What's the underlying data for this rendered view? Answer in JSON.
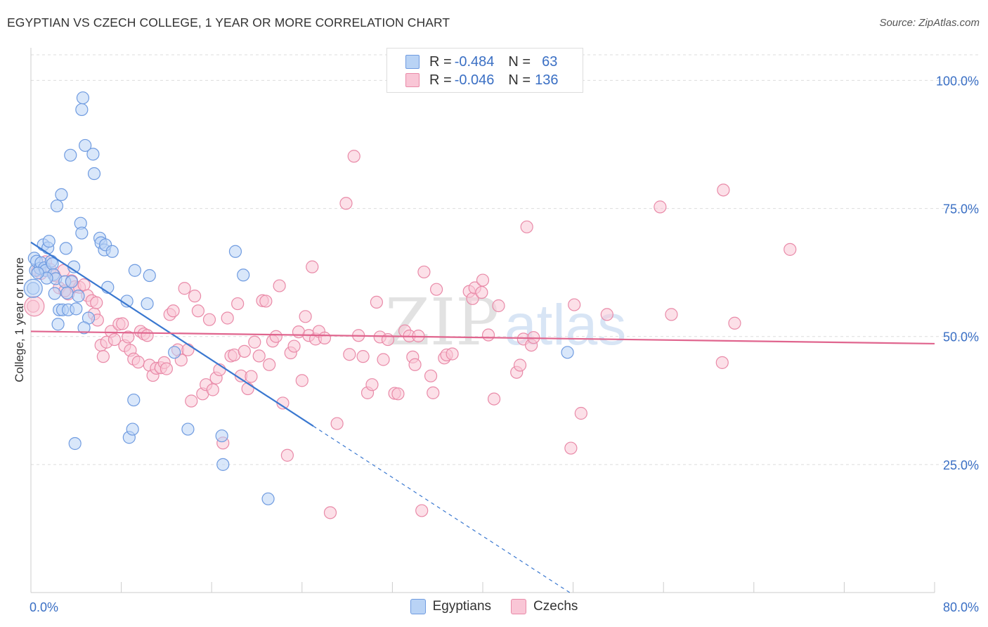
{
  "title": "EGYPTIAN VS CZECH COLLEGE, 1 YEAR OR MORE CORRELATION CHART",
  "source": "Source: ZipAtlas.com",
  "legend_top": [
    {
      "r_label": "R =",
      "r_value": "-0.484",
      "n_label": "N =",
      "n_value": "63",
      "fill": "#b9d3f5",
      "stroke": "#6f9be0"
    },
    {
      "r_label": "R =",
      "r_value": "-0.046",
      "n_label": "N =",
      "n_value": "136",
      "fill": "#f9c6d6",
      "stroke": "#e98aa8"
    }
  ],
  "legend_bottom": [
    {
      "label": "Egyptians",
      "fill": "#b9d3f5",
      "stroke": "#6f9be0"
    },
    {
      "label": "Czechs",
      "fill": "#f9c6d6",
      "stroke": "#e98aa8"
    }
  ],
  "watermark": {
    "zip": "ZIP",
    "atlas": "atlas"
  },
  "chart_data": {
    "type": "scatter",
    "title": "EGYPTIAN VS CZECH COLLEGE, 1 YEAR OR MORE CORRELATION CHART",
    "xlabel": "",
    "ylabel": "College, 1 year or more",
    "xlim": [
      0,
      80
    ],
    "ylim": [
      0,
      105
    ],
    "x_tick_labels": [
      "0.0%",
      "80.0%"
    ],
    "y_ticks": [
      25,
      50,
      75,
      100
    ],
    "y_tick_labels": [
      "25.0%",
      "50.0%",
      "75.0%",
      "100.0%"
    ],
    "grid": true,
    "colors": {
      "blue": "#3a6fc4",
      "pink": "#e0658e",
      "grid": "#dddddd"
    },
    "series": [
      {
        "name": "Egyptians",
        "fill": "#b9d3f5",
        "stroke": "#6f9be0",
        "line_color": "#3a78d0",
        "trend": {
          "x0": 0,
          "y0": 68.4,
          "x1": 25,
          "y1": 32.5,
          "dash_to_x": 47.7,
          "dash_to_y": 0
        },
        "points": [
          [
            0.2,
            59.4
          ],
          [
            0.3,
            65.3
          ],
          [
            0.4,
            62.9
          ],
          [
            0.5,
            64.7
          ],
          [
            0.8,
            63.3
          ],
          [
            0.9,
            64.4
          ],
          [
            1.1,
            67.9
          ],
          [
            1.2,
            63.4
          ],
          [
            1.3,
            62.9
          ],
          [
            1.5,
            67.3
          ],
          [
            1.6,
            68.6
          ],
          [
            1.8,
            64.7
          ],
          [
            1.9,
            64.2
          ],
          [
            2.0,
            62.1
          ],
          [
            2.1,
            58.4
          ],
          [
            2.2,
            61.3
          ],
          [
            2.3,
            75.5
          ],
          [
            2.5,
            55.2
          ],
          [
            2.7,
            77.7
          ],
          [
            2.8,
            55.2
          ],
          [
            3.0,
            60.7
          ],
          [
            3.1,
            67.2
          ],
          [
            3.2,
            58.5
          ],
          [
            3.3,
            55.2
          ],
          [
            3.5,
            85.4
          ],
          [
            3.6,
            60.7
          ],
          [
            3.8,
            63.6
          ],
          [
            4.0,
            55.4
          ],
          [
            4.2,
            57.9
          ],
          [
            4.4,
            72.1
          ],
          [
            4.5,
            70.2
          ],
          [
            4.5,
            94.3
          ],
          [
            4.6,
            96.6
          ],
          [
            4.8,
            87.3
          ],
          [
            5.1,
            53.6
          ],
          [
            5.5,
            85.6
          ],
          [
            5.6,
            81.8
          ],
          [
            6.1,
            69.2
          ],
          [
            6.2,
            68.3
          ],
          [
            6.5,
            66.9
          ],
          [
            6.6,
            67.9
          ],
          [
            7.2,
            66.6
          ],
          [
            8.5,
            56.9
          ],
          [
            8.7,
            30.3
          ],
          [
            9.0,
            31.9
          ],
          [
            9.1,
            37.6
          ],
          [
            9.2,
            62.9
          ],
          [
            10.3,
            56.4
          ],
          [
            10.5,
            61.9
          ],
          [
            12.7,
            46.9
          ],
          [
            13.9,
            31.9
          ],
          [
            16.9,
            30.6
          ],
          [
            17.0,
            25.0
          ],
          [
            18.1,
            66.6
          ],
          [
            18.8,
            62.0
          ],
          [
            21.0,
            18.3
          ],
          [
            2.4,
            52.4
          ],
          [
            4.7,
            51.7
          ],
          [
            6.8,
            59.6
          ],
          [
            1.4,
            61.4
          ],
          [
            3.9,
            29.1
          ],
          [
            0.6,
            62.4
          ],
          [
            47.5,
            46.9
          ]
        ]
      },
      {
        "name": "Czechs",
        "fill": "#f9c6d6",
        "stroke": "#e98aa8",
        "line_color": "#e0658e",
        "trend": {
          "x0": 0,
          "y0": 51.0,
          "x1": 80,
          "y1": 48.6
        },
        "points": [
          [
            0.2,
            55.9
          ],
          [
            0.6,
            62.9
          ],
          [
            1.3,
            64.6
          ],
          [
            1.7,
            63.1
          ],
          [
            2.1,
            61.9
          ],
          [
            2.5,
            59.5
          ],
          [
            2.9,
            62.9
          ],
          [
            3.3,
            58.3
          ],
          [
            3.6,
            60.9
          ],
          [
            3.9,
            59.7
          ],
          [
            4.3,
            59.6
          ],
          [
            4.7,
            60.1
          ],
          [
            5.0,
            58.0
          ],
          [
            5.4,
            57.0
          ],
          [
            5.6,
            54.4
          ],
          [
            5.9,
            53.2
          ],
          [
            6.2,
            48.3
          ],
          [
            6.4,
            46.1
          ],
          [
            6.7,
            48.9
          ],
          [
            7.1,
            51.0
          ],
          [
            7.4,
            49.4
          ],
          [
            7.8,
            52.4
          ],
          [
            8.1,
            52.5
          ],
          [
            8.3,
            48.2
          ],
          [
            8.6,
            49.9
          ],
          [
            8.8,
            47.3
          ],
          [
            9.1,
            45.6
          ],
          [
            9.5,
            45.0
          ],
          [
            9.7,
            51.0
          ],
          [
            10.0,
            50.5
          ],
          [
            10.3,
            50.2
          ],
          [
            10.5,
            44.4
          ],
          [
            10.8,
            42.4
          ],
          [
            11.1,
            43.8
          ],
          [
            11.5,
            43.9
          ],
          [
            11.8,
            44.9
          ],
          [
            12.0,
            43.7
          ],
          [
            12.3,
            54.3
          ],
          [
            12.6,
            55.0
          ],
          [
            13.0,
            47.4
          ],
          [
            13.3,
            45.4
          ],
          [
            13.6,
            59.4
          ],
          [
            13.9,
            47.4
          ],
          [
            14.2,
            37.4
          ],
          [
            14.5,
            57.9
          ],
          [
            14.8,
            55.0
          ],
          [
            15.2,
            38.8
          ],
          [
            15.5,
            40.6
          ],
          [
            15.8,
            53.3
          ],
          [
            16.1,
            39.6
          ],
          [
            16.4,
            41.9
          ],
          [
            16.7,
            43.5
          ],
          [
            17.0,
            29.2
          ],
          [
            17.4,
            53.6
          ],
          [
            17.7,
            46.2
          ],
          [
            18.0,
            46.4
          ],
          [
            18.3,
            56.4
          ],
          [
            18.6,
            42.3
          ],
          [
            18.9,
            47.1
          ],
          [
            19.2,
            39.8
          ],
          [
            19.5,
            42.2
          ],
          [
            19.8,
            48.9
          ],
          [
            20.2,
            46.2
          ],
          [
            20.5,
            57.0
          ],
          [
            20.8,
            56.9
          ],
          [
            21.1,
            44.5
          ],
          [
            21.4,
            49.1
          ],
          [
            21.7,
            50.0
          ],
          [
            22.0,
            59.9
          ],
          [
            22.3,
            37.0
          ],
          [
            22.7,
            26.8
          ],
          [
            23.0,
            46.8
          ],
          [
            23.3,
            48.1
          ],
          [
            23.7,
            50.9
          ],
          [
            24.0,
            41.4
          ],
          [
            24.3,
            53.9
          ],
          [
            24.6,
            50.2
          ],
          [
            24.9,
            63.6
          ],
          [
            25.2,
            49.5
          ],
          [
            25.5,
            51.0
          ],
          [
            26.0,
            49.7
          ],
          [
            26.5,
            15.6
          ],
          [
            27.1,
            33.0
          ],
          [
            27.9,
            76.0
          ],
          [
            28.2,
            46.5
          ],
          [
            28.6,
            85.2
          ],
          [
            29.0,
            50.2
          ],
          [
            29.4,
            46.1
          ],
          [
            29.8,
            39.0
          ],
          [
            30.2,
            40.6
          ],
          [
            30.6,
            56.7
          ],
          [
            30.9,
            49.9
          ],
          [
            31.2,
            45.5
          ],
          [
            31.6,
            49.4
          ],
          [
            32.2,
            38.9
          ],
          [
            32.5,
            38.8
          ],
          [
            33.1,
            51.1
          ],
          [
            33.5,
            50.1
          ],
          [
            33.8,
            46.0
          ],
          [
            34.0,
            44.5
          ],
          [
            34.3,
            50.1
          ],
          [
            34.6,
            16.0
          ],
          [
            34.8,
            62.6
          ],
          [
            35.4,
            42.3
          ],
          [
            35.6,
            39.0
          ],
          [
            35.9,
            59.2
          ],
          [
            36.6,
            45.8
          ],
          [
            36.8,
            46.4
          ],
          [
            37.3,
            46.6
          ],
          [
            38.8,
            58.8
          ],
          [
            39.1,
            57.4
          ],
          [
            39.3,
            59.5
          ],
          [
            39.9,
            58.6
          ],
          [
            40.0,
            61.0
          ],
          [
            40.5,
            50.3
          ],
          [
            41.0,
            37.8
          ],
          [
            41.4,
            56.0
          ],
          [
            43.0,
            43.0
          ],
          [
            43.3,
            44.4
          ],
          [
            43.6,
            49.5
          ],
          [
            43.9,
            71.4
          ],
          [
            44.3,
            48.3
          ],
          [
            44.5,
            49.8
          ],
          [
            47.8,
            28.2
          ],
          [
            48.1,
            56.2
          ],
          [
            48.7,
            35.0
          ],
          [
            51.0,
            54.3
          ],
          [
            55.7,
            75.3
          ],
          [
            56.7,
            54.3
          ],
          [
            61.2,
            44.9
          ],
          [
            61.3,
            78.6
          ],
          [
            62.3,
            52.6
          ],
          [
            67.2,
            67.0
          ],
          [
            0.9,
            62.3
          ],
          [
            3.0,
            58.9
          ],
          [
            5.8,
            56.6
          ]
        ]
      }
    ]
  }
}
